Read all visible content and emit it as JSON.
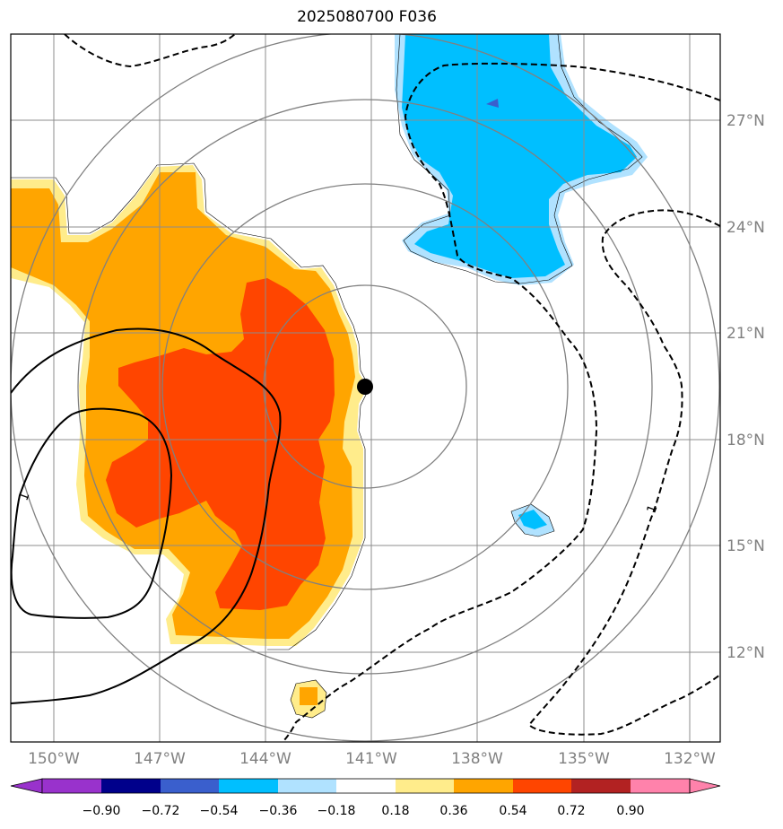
{
  "title": "2025080700 F036",
  "map": {
    "lon_labels": [
      "150°W",
      "147°W",
      "144°W",
      "141°W",
      "138°W",
      "135°W",
      "132°W"
    ],
    "lat_labels": [
      "27°N",
      "24°N",
      "21°N",
      "18°N",
      "15°N",
      "12°N"
    ],
    "lon_values": [
      -150,
      -147,
      -144,
      -141,
      -138,
      -135,
      -132
    ],
    "lat_values": [
      27,
      24,
      21,
      18,
      15,
      12
    ],
    "center_marker": {
      "lon": -141.1,
      "lat": 19.4
    },
    "range_rings": "concentric circles around the storm center",
    "contour_labels": [
      "1",
      "1"
    ],
    "colors": {
      "gridline": "#8c8c8c",
      "ring": "#808080",
      "marker": "#000000"
    }
  },
  "colorbar": {
    "levels": [
      "−0.90",
      "−0.72",
      "−0.54",
      "−0.36",
      "−0.18",
      "0.18",
      "0.36",
      "0.54",
      "0.72",
      "0.90"
    ],
    "colors": [
      "#9932cc",
      "#00008b",
      "#3a5fcd",
      "#00bfff",
      "#b0e2ff",
      "#ffffff",
      "#ffec8b",
      "#ffa500",
      "#ff4500",
      "#b22222",
      "#ff82ab"
    ]
  }
}
